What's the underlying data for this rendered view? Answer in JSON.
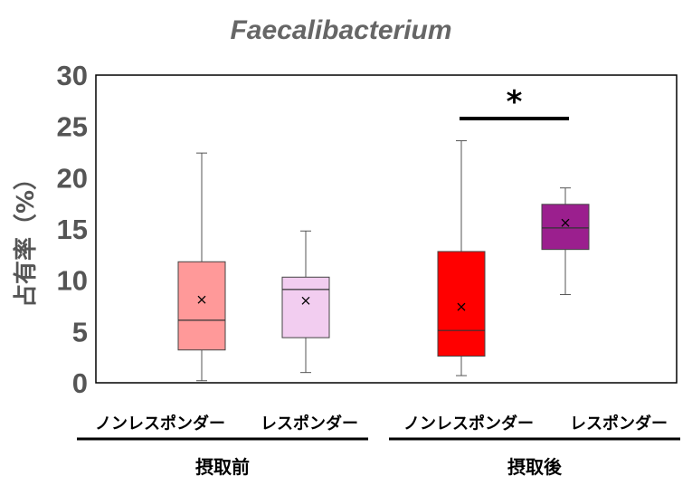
{
  "chart_data": {
    "type": "box",
    "title": "Faecalibacterium",
    "ylabel": "占有率（%）",
    "ylim": [
      0,
      30
    ],
    "yticks": [
      "0",
      "5",
      "10",
      "15",
      "20",
      "25",
      "30"
    ],
    "categories": [
      "ノンレスポンダー",
      "レスポンダー",
      "ノンレスポンダー",
      "レスポンダー"
    ],
    "groups": [
      {
        "label": "摂取前",
        "categories": [
          0,
          1
        ]
      },
      {
        "label": "摂取後",
        "categories": [
          2,
          3
        ]
      }
    ],
    "boxes": [
      {
        "category": "ノンレスポンダー",
        "group": "摂取前",
        "min": 0.2,
        "q1": 3.2,
        "median": 6.1,
        "q3": 11.8,
        "max": 22.4,
        "mean": 8.1,
        "fill": "#ff9999",
        "stroke": "#444444"
      },
      {
        "category": "レスポンダー",
        "group": "摂取前",
        "min": 1.0,
        "q1": 4.4,
        "median": 9.1,
        "q3": 10.3,
        "max": 14.8,
        "mean": 8.0,
        "fill": "#f2cdf0",
        "stroke": "#444444"
      },
      {
        "category": "ノンレスポンダー",
        "group": "摂取後",
        "min": 0.7,
        "q1": 2.6,
        "median": 5.1,
        "q3": 12.8,
        "max": 23.6,
        "mean": 7.4,
        "fill": "#ff0000",
        "stroke": "#444444"
      },
      {
        "category": "レスポンダー",
        "group": "摂取後",
        "min": 8.6,
        "q1": 13.0,
        "median": 15.1,
        "q3": 17.4,
        "max": 19.0,
        "mean": 15.6,
        "fill": "#9b1f8e",
        "stroke": "#444444"
      }
    ],
    "annotations": [
      {
        "text": "*",
        "between": [
          2,
          3
        ]
      }
    ],
    "grid": false,
    "legend": "none"
  }
}
